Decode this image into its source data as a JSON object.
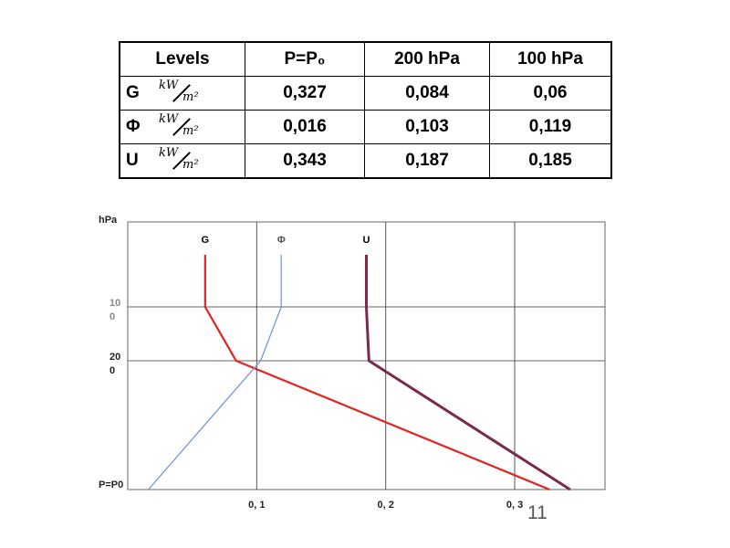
{
  "table": {
    "headers": [
      "Levels",
      "P=P₀",
      "200 hPa",
      "100 hPa"
    ],
    "unit": {
      "numerator": "kW",
      "denominator": "m²"
    },
    "rows": [
      {
        "name": "G",
        "values": [
          "0,327",
          "0,084",
          "0,06"
        ]
      },
      {
        "name": "Φ",
        "values": [
          "0,016",
          "0,103",
          "0,119"
        ]
      },
      {
        "name": "U",
        "values": [
          "0,343",
          "0,187",
          "0,185"
        ]
      }
    ]
  },
  "chart_data": {
    "type": "line",
    "ylabel": "hPa",
    "xlabel": "",
    "y_categories": [
      "P=P0",
      "20 0",
      "10 0"
    ],
    "y_tick_labels": [
      {
        "lines": [
          "10",
          "0"
        ],
        "level": "100 hPa"
      },
      {
        "lines": [
          "20",
          "0"
        ],
        "level": "200 hPa"
      },
      {
        "lines": [
          "P=P0"
        ],
        "level": "P=P0"
      }
    ],
    "x_tick_labels": [
      "0, 1",
      "0, 2",
      "0, 3"
    ],
    "x_ticks": [
      0.1,
      0.2,
      0.3
    ],
    "xlim": [
      0,
      0.37
    ],
    "grid": true,
    "series": [
      {
        "name": "G",
        "color": "#e8201c",
        "points": [
          {
            "level": "P=P0",
            "value": 0.327
          },
          {
            "level": "200 hPa",
            "value": 0.084
          },
          {
            "level": "100 hPa",
            "value": 0.06
          },
          {
            "level": "top",
            "value": 0.06
          }
        ]
      },
      {
        "name": "Φ",
        "color": "#6f8fd8",
        "points": [
          {
            "level": "P=P0",
            "value": 0.016
          },
          {
            "level": "200 hPa",
            "value": 0.103
          },
          {
            "level": "100 hPa",
            "value": 0.119
          },
          {
            "level": "top",
            "value": 0.119
          }
        ]
      },
      {
        "name": "U",
        "color": "#7b2a4e",
        "points": [
          {
            "level": "P=P0",
            "value": 0.343
          },
          {
            "level": "200 hPa",
            "value": 0.187
          },
          {
            "level": "100 hPa",
            "value": 0.185
          },
          {
            "level": "top",
            "value": 0.185
          }
        ]
      }
    ]
  },
  "slide_number": "11"
}
